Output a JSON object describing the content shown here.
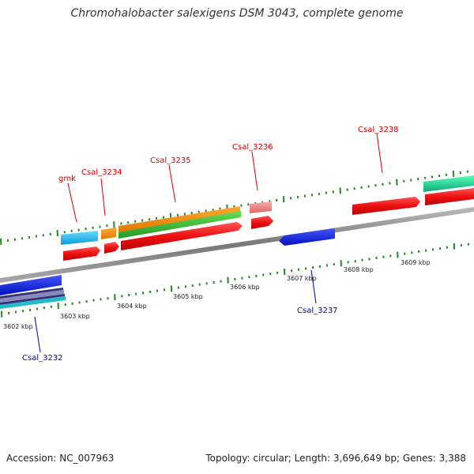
{
  "title": "Chromohalobacter salexigens DSM 3043, complete genome",
  "footer": {
    "accession": "Accession: NC_007963",
    "summary": "Topology: circular; Length: 3,696,649 bp; Genes: 3,388"
  },
  "scale": {
    "unit": "kbp",
    "ticks": [
      "3602 kbp",
      "3603 kbp",
      "3604 kbp",
      "3605 kbp",
      "3606 kbp",
      "3607 kbp",
      "3608 kbp",
      "3609 kbp"
    ]
  },
  "gene_labels": {
    "gmk": "gmk",
    "csal_3232": "Csal_3232",
    "csal_3234": "Csal_3234",
    "csal_3235": "Csal_3235",
    "csal_3236": "Csal_3236",
    "csal_3237": "Csal_3237",
    "csal_3238": "Csal_3238"
  },
  "colors": {
    "forward_label": "#cc0000",
    "reverse_label": "#0000aa",
    "gene_red": "#ee1111",
    "gene_orange": "#ee8800",
    "gene_green": "#33bb33",
    "gene_cyan": "#22bbee",
    "gene_pink": "#ee7777",
    "gene_blue": "#1122dd",
    "gene_teal": "#22dd99",
    "backbone": "#888888",
    "tick": "#228822"
  }
}
